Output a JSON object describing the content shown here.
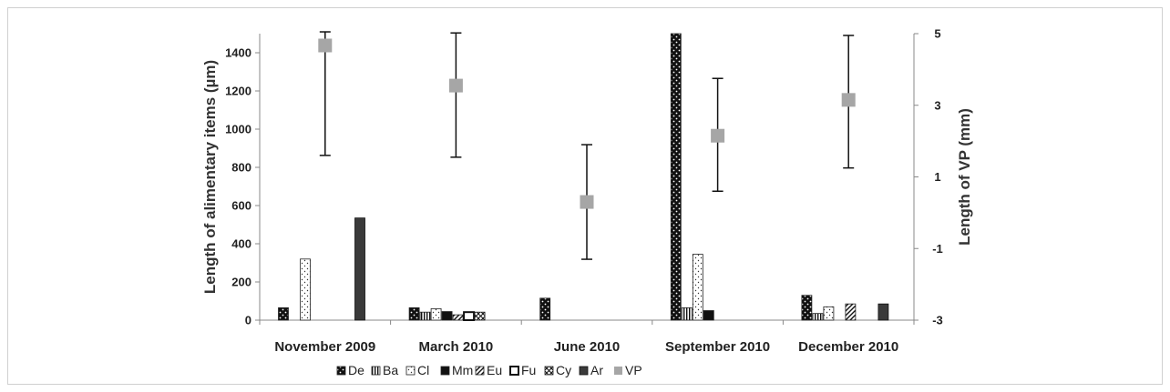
{
  "chart_data": {
    "type": "bar",
    "categories": [
      "November 2009",
      "March 2010",
      "June 2010",
      "September 2010",
      "December 2010"
    ],
    "ylabel": "Length of alimentary items (µm)",
    "y2label": "Length of VP (mm)",
    "ylim": [
      0,
      1500
    ],
    "y2lim": [
      -3,
      5
    ],
    "yticks": [
      0,
      200,
      400,
      600,
      800,
      1000,
      1200,
      1400
    ],
    "y2ticks": [
      -3,
      -1,
      1,
      3,
      5
    ],
    "legend_position": "bottom",
    "series": [
      {
        "name": "De",
        "pattern": "dots-black",
        "values": [
          65,
          65,
          115,
          1500,
          130
        ]
      },
      {
        "name": "Ba",
        "pattern": "vlines",
        "values": [
          0,
          42,
          0,
          65,
          35
        ]
      },
      {
        "name": "Cl",
        "pattern": "dots-white",
        "values": [
          320,
          60,
          0,
          345,
          70
        ]
      },
      {
        "name": "Mm",
        "pattern": "solid-black",
        "values": [
          0,
          45,
          0,
          50,
          0
        ]
      },
      {
        "name": "Eu",
        "pattern": "diagonal",
        "values": [
          0,
          28,
          0,
          0,
          85
        ]
      },
      {
        "name": "Fu",
        "pattern": "white-thick",
        "values": [
          0,
          42,
          0,
          0,
          0
        ]
      },
      {
        "name": "Cy",
        "pattern": "crosshatch",
        "values": [
          0,
          42,
          0,
          0,
          0
        ]
      },
      {
        "name": "Ar",
        "pattern": "dark-gray",
        "values": [
          535,
          0,
          0,
          0,
          85
        ]
      }
    ],
    "vp": {
      "name": "VP",
      "color": "#a6a6a6",
      "values": [
        4.67,
        3.55,
        0.3,
        2.15,
        3.15
      ],
      "err_low": [
        1.6,
        1.55,
        -1.3,
        0.6,
        1.25
      ],
      "err_high": [
        5.05,
        5.02,
        1.9,
        3.75,
        4.95
      ]
    }
  }
}
